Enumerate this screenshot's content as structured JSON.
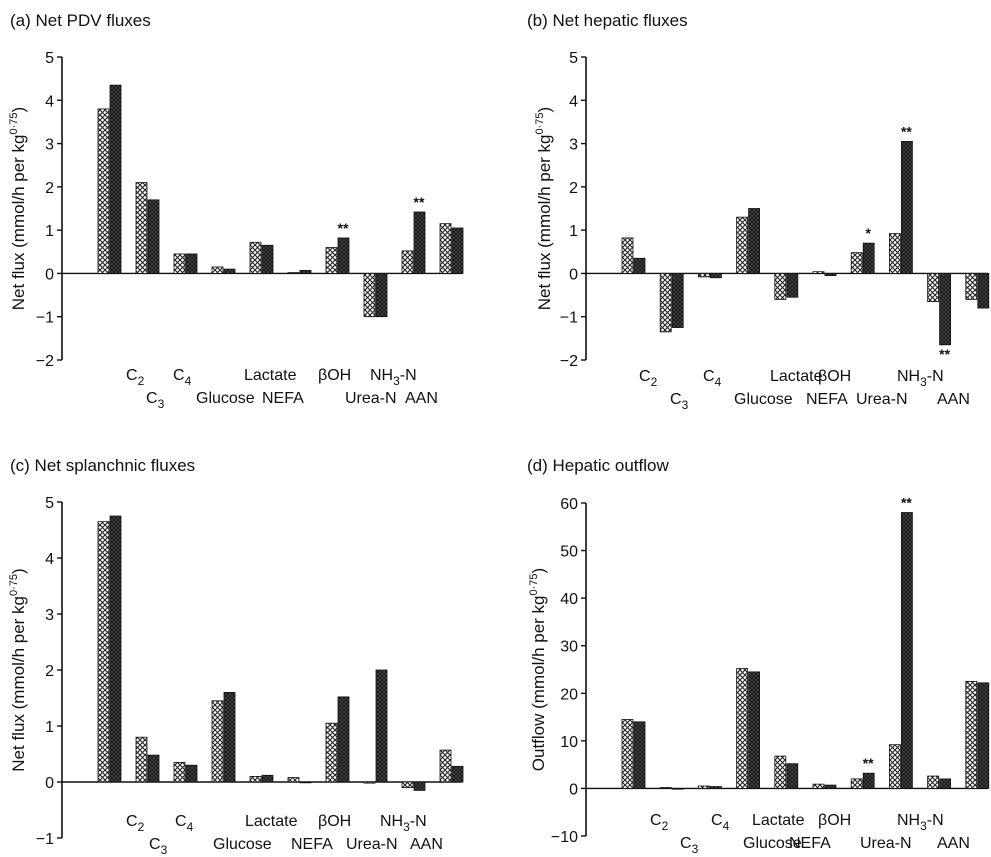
{
  "chart_data": [
    {
      "type": "bar",
      "title": "(a) Net PDV fluxes",
      "ylabel": "Net flux (mmol/h per kg",
      "ylabel_exp": "0·75",
      "ylabel_close": ")",
      "ylim": [
        -2,
        5
      ],
      "yticks": [
        -2,
        -1,
        0,
        1,
        2,
        3,
        4,
        5
      ],
      "categories": [
        "C2",
        "C3",
        "C4",
        "Glucose",
        "Lactate",
        "NEFA",
        "βOH",
        "Urea-N",
        "NH3-N",
        "AAN"
      ],
      "category_labels": [
        {
          "base": "C",
          "sub": "2",
          "row": 1
        },
        {
          "base": "C",
          "sub": "3",
          "row": 2
        },
        {
          "base": "C",
          "sub": "4",
          "row": 1
        },
        {
          "base": "Glucose",
          "sub": "",
          "row": 2
        },
        {
          "base": "Lactate",
          "sub": "",
          "row": 1
        },
        {
          "base": "NEFA",
          "sub": "",
          "row": 2
        },
        {
          "base": "βOH",
          "sub": "",
          "row": 1
        },
        {
          "base": "Urea-N",
          "sub": "",
          "row": 2
        },
        {
          "base": "NH",
          "sub": "3",
          "tail": "-N",
          "row": 1
        },
        {
          "base": "AAN",
          "sub": "",
          "row": 2
        }
      ],
      "series": [
        {
          "values": [
            3.8,
            2.1,
            0.45,
            0.15,
            0.72,
            0.02,
            0.6,
            -1.0,
            0.52,
            1.15
          ]
        },
        {
          "values": [
            4.35,
            1.7,
            0.45,
            0.1,
            0.65,
            0.07,
            0.82,
            -1.0,
            1.42,
            1.05
          ]
        }
      ],
      "significance": [
        {
          "category": "βOH",
          "label": "**"
        },
        {
          "category": "NH3-N",
          "label": "**"
        }
      ]
    },
    {
      "type": "bar",
      "title": "(b) Net hepatic fluxes",
      "ylabel": "Net flux (mmol/h per kg",
      "ylabel_exp": "0·75",
      "ylabel_close": ")",
      "ylim": [
        -2,
        5
      ],
      "yticks": [
        -2,
        -1,
        0,
        1,
        2,
        3,
        4,
        5
      ],
      "categories": [
        "C2",
        "C3",
        "C4",
        "Glucose",
        "Lactate",
        "NEFA",
        "βOH",
        "Urea-N",
        "NH3-N",
        "AAN"
      ],
      "category_labels": [
        {
          "base": "C",
          "sub": "2",
          "row": 1
        },
        {
          "base": "C",
          "sub": "3",
          "row": 2
        },
        {
          "base": "C",
          "sub": "4",
          "row": 1
        },
        {
          "base": "Glucose",
          "sub": "",
          "row": 2
        },
        {
          "base": "Lactate",
          "sub": "",
          "row": 1
        },
        {
          "base": "NEFA",
          "sub": "",
          "row": 2
        },
        {
          "base": "βOH",
          "sub": "",
          "row": 1
        },
        {
          "base": "Urea-N",
          "sub": "",
          "row": 2
        },
        {
          "base": "NH",
          "sub": "3",
          "tail": "-N",
          "row": 1
        },
        {
          "base": "AAN",
          "sub": "",
          "row": 2
        }
      ],
      "series": [
        {
          "values": [
            0.82,
            -1.35,
            -0.08,
            1.3,
            -0.6,
            0.04,
            0.48,
            0.92,
            -0.65,
            -0.6
          ]
        },
        {
          "values": [
            0.35,
            -1.25,
            -0.1,
            1.5,
            -0.55,
            -0.05,
            0.7,
            3.05,
            -1.65,
            -0.8
          ]
        }
      ],
      "significance": [
        {
          "category": "βOH",
          "label": "*"
        },
        {
          "category": "Urea-N",
          "label": "**"
        },
        {
          "category": "NH3-N",
          "label": "**",
          "position": "below"
        }
      ]
    },
    {
      "type": "bar",
      "title": "(c) Net splanchnic fluxes",
      "ylabel": "Net flux (mmol/h per kg",
      "ylabel_exp": "0·75",
      "ylabel_close": ")",
      "ylim": [
        -1,
        5
      ],
      "yticks": [
        -1,
        0,
        1,
        2,
        3,
        4,
        5
      ],
      "categories": [
        "C2",
        "C3",
        "C4",
        "Glucose",
        "Lactate",
        "NEFA",
        "βOH",
        "Urea-N",
        "NH3-N",
        "AAN"
      ],
      "category_labels": [
        {
          "base": "C",
          "sub": "2",
          "row": 1
        },
        {
          "base": "C",
          "sub": "3",
          "row": 2
        },
        {
          "base": "C",
          "sub": "4",
          "row": 1
        },
        {
          "base": "Glucose",
          "sub": "",
          "row": 2
        },
        {
          "base": "Lactate",
          "sub": "",
          "row": 1
        },
        {
          "base": "NEFA",
          "sub": "",
          "row": 2
        },
        {
          "base": "βOH",
          "sub": "",
          "row": 1
        },
        {
          "base": "Urea-N",
          "sub": "",
          "row": 2
        },
        {
          "base": "NH",
          "sub": "3",
          "tail": "-N",
          "row": 1
        },
        {
          "base": "AAN",
          "sub": "",
          "row": 2
        }
      ],
      "series": [
        {
          "values": [
            4.65,
            0.8,
            0.35,
            1.45,
            0.1,
            0.08,
            1.05,
            -0.02,
            -0.1,
            0.57
          ]
        },
        {
          "values": [
            4.75,
            0.48,
            0.3,
            1.6,
            0.12,
            0.0,
            1.52,
            2.0,
            -0.15,
            0.28
          ]
        }
      ],
      "significance": []
    },
    {
      "type": "bar",
      "title": "(d) Hepatic outflow",
      "ylabel": "Outflow (mmol/h per kg",
      "ylabel_exp": "0·75",
      "ylabel_close": ")",
      "ylim": [
        -10,
        60
      ],
      "yticks": [
        -10,
        0,
        10,
        20,
        30,
        40,
        50,
        60
      ],
      "categories": [
        "C2",
        "C3",
        "C4",
        "Lactate",
        "Glucose",
        "NEFA",
        "βOH",
        "Urea-N",
        "NH3-N",
        "AAN"
      ],
      "category_labels": [
        {
          "base": "C",
          "sub": "2",
          "row": 1
        },
        {
          "base": "C",
          "sub": "3",
          "row": 2
        },
        {
          "base": "C",
          "sub": "4",
          "row": 1
        },
        {
          "base": "Lactate",
          "sub": "",
          "row": 1
        },
        {
          "base": "Glucose",
          "sub": "",
          "row": 2
        },
        {
          "base": "NEFA",
          "sub": "",
          "row": 2
        },
        {
          "base": "βOH",
          "sub": "",
          "row": 1
        },
        {
          "base": "Urea-N",
          "sub": "",
          "row": 2
        },
        {
          "base": "NH",
          "sub": "3",
          "tail": "-N",
          "row": 1
        },
        {
          "base": "AAN",
          "sub": "",
          "row": 2
        }
      ],
      "series": [
        {
          "values": [
            14.5,
            0.2,
            0.5,
            25.2,
            6.8,
            0.9,
            2.0,
            9.2,
            2.6,
            22.5
          ]
        },
        {
          "values": [
            14.0,
            0.0,
            0.4,
            24.5,
            5.2,
            0.7,
            3.2,
            58.0,
            2.0,
            22.2
          ]
        }
      ],
      "significance": [
        {
          "category": "βOH",
          "label": "**"
        },
        {
          "category": "Urea-N",
          "label": "**"
        }
      ]
    }
  ]
}
